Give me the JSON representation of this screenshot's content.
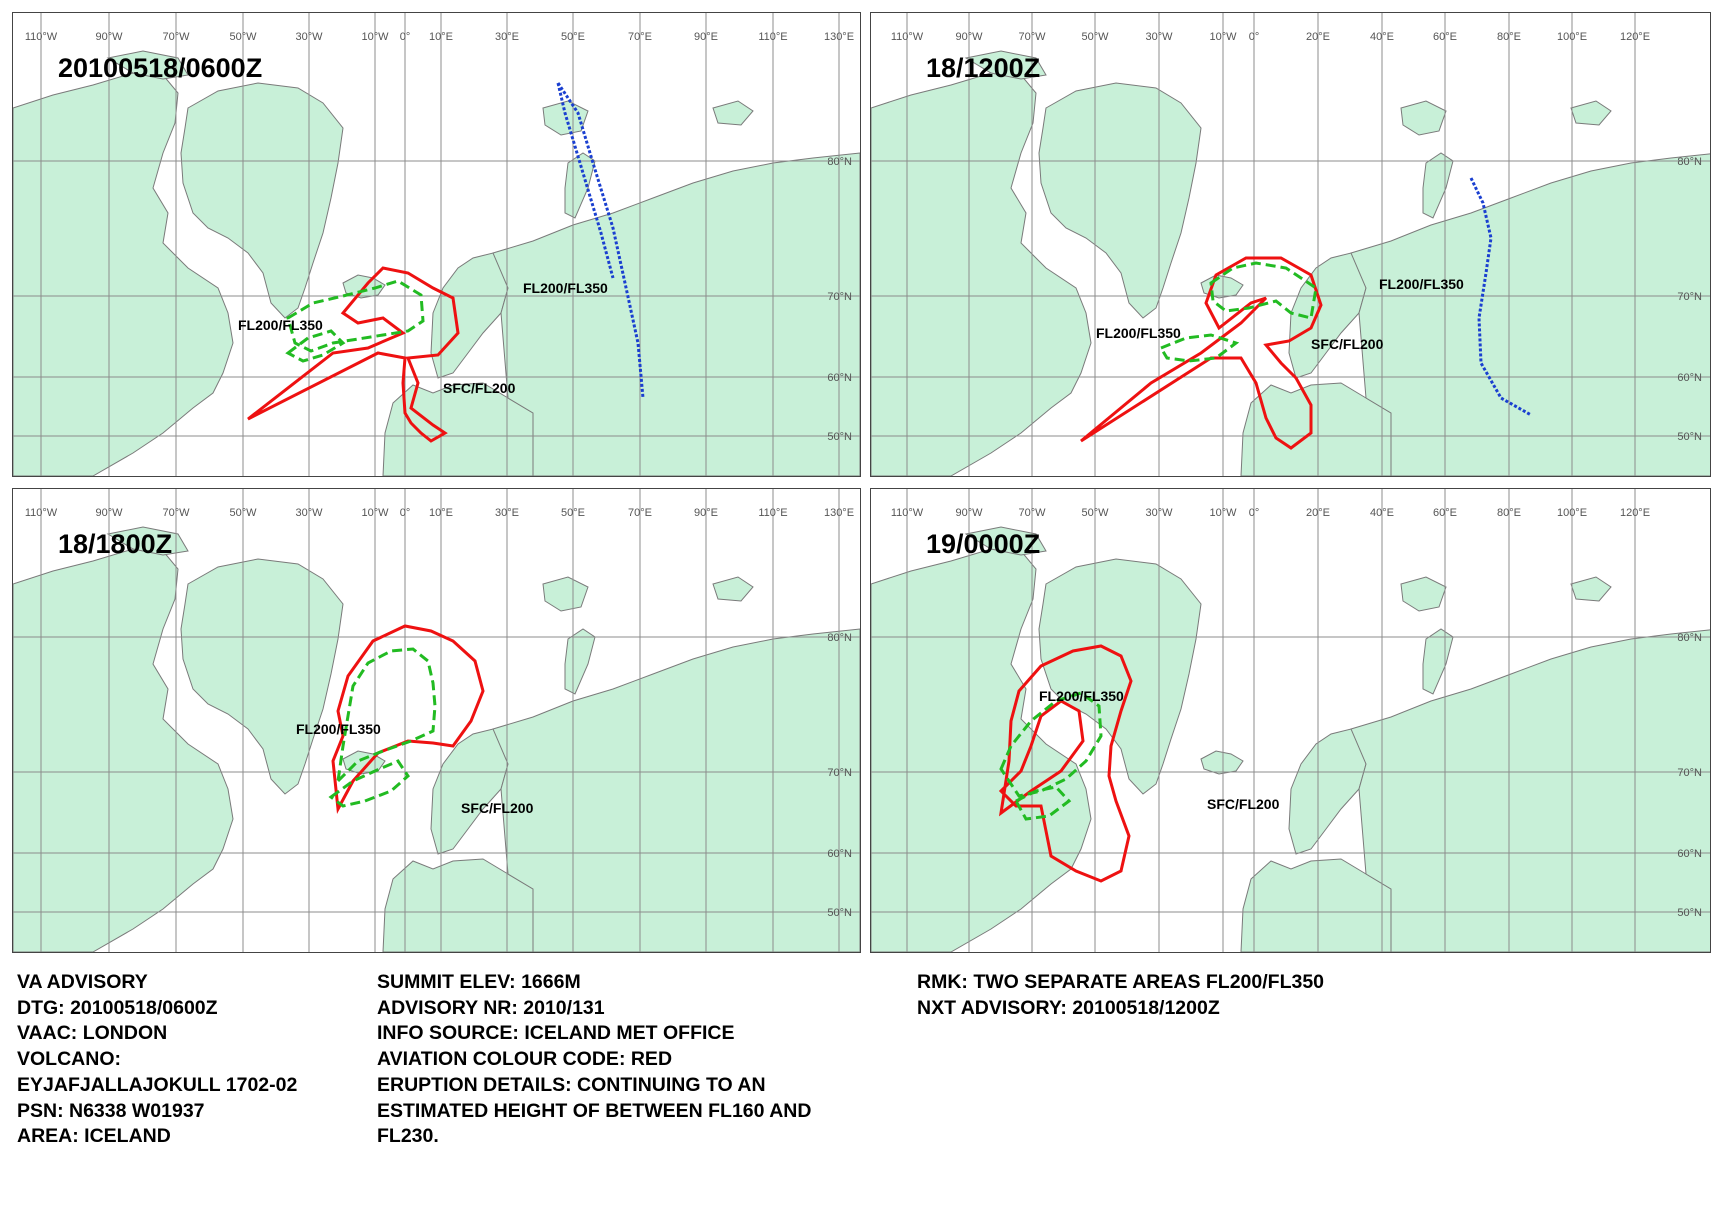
{
  "panels": [
    {
      "title": "20100518/0600Z",
      "lon_labels": [
        "110°W",
        "90°W",
        "70°W",
        "50°W",
        "30°W",
        "10°W",
        "0°",
        "10°E",
        "30°E",
        "50°E",
        "70°E",
        "90°E",
        "110°E",
        "130°E"
      ],
      "lat_labels": [
        "80°N",
        "70°N",
        "60°N",
        "50°N"
      ],
      "annotations": [
        "FL200/FL350",
        "FL200/FL350",
        "SFC/FL200"
      ]
    },
    {
      "title": "18/1200Z",
      "lon_labels": [
        "110°W",
        "90°W",
        "70°W",
        "50°W",
        "30°W",
        "10°W",
        "0°",
        "20°E",
        "40°E",
        "60°E",
        "80°E",
        "100°E",
        "120°E"
      ],
      "lat_labels": [
        "80°N",
        "70°N",
        "60°N",
        "50°N"
      ],
      "annotations": [
        "FL200/FL350",
        "FL200/FL350",
        "SFC/FL200"
      ]
    },
    {
      "title": "18/1800Z",
      "lon_labels": [
        "110°W",
        "90°W",
        "70°W",
        "50°W",
        "30°W",
        "10°W",
        "0°",
        "10°E",
        "30°E",
        "50°E",
        "70°E",
        "90°E",
        "110°E",
        "130°E"
      ],
      "lat_labels": [
        "80°N",
        "70°N",
        "60°N",
        "50°N"
      ],
      "annotations": [
        "FL200/FL350",
        "SFC/FL200"
      ]
    },
    {
      "title": "19/0000Z",
      "lon_labels": [
        "110°W",
        "90°W",
        "70°W",
        "50°W",
        "30°W",
        "10°W",
        "0°",
        "20°E",
        "40°E",
        "60°E",
        "80°E",
        "100°E",
        "120°E"
      ],
      "lat_labels": [
        "80°N",
        "70°N",
        "60°N",
        "50°N"
      ],
      "annotations": [
        "FL200/FL350",
        "SFC/FL200"
      ]
    }
  ],
  "advisory": {
    "col1": [
      "VA ADVISORY",
      "DTG:  20100518/0600Z",
      "VAAC:  LONDON",
      "VOLCANO:",
      "EYJAFJALLAJOKULL 1702-02",
      "PSN:  N6338 W01937",
      "AREA:  ICELAND"
    ],
    "col2": [
      "SUMMIT ELEV:  1666M",
      "ADVISORY NR:  2010/131",
      "INFO SOURCE:  ICELAND MET OFFICE",
      "AVIATION COLOUR CODE:  RED",
      "ERUPTION DETAILS:  CONTINUING TO AN",
      "ESTIMATED HEIGHT OF BETWEEN FL160 AND",
      "FL230."
    ],
    "col3": [
      "RMK:  TWO SEPARATE AREAS FL200/FL350",
      "NXT ADVISORY:  20100518/1200Z"
    ]
  },
  "colors": {
    "land": "#c8f0d8",
    "coast": "#7a7a7a",
    "grid": "#8c8c8c",
    "sfc_fl200": "#ee1111",
    "fl200_fl350": "#22bb22",
    "other_ash": "#1a3fd0"
  }
}
